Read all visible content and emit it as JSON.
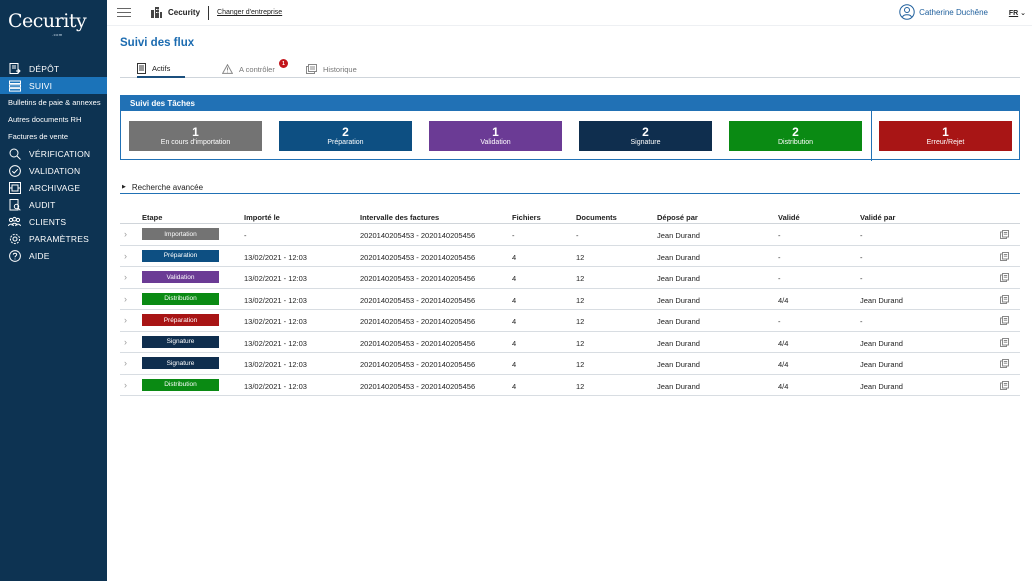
{
  "app": {
    "logo": "Cecurity",
    "logo_sub": ".com"
  },
  "sidebar": {
    "items": [
      {
        "key": "depot",
        "label": "DÉPÔT",
        "icon": "deposit-icon"
      },
      {
        "key": "suivi",
        "label": "SUIVI",
        "icon": "list-icon",
        "active": true
      },
      {
        "key": "sub1",
        "label": "Bulletins de paie & annexes",
        "sub": true
      },
      {
        "key": "sub2",
        "label": "Autres documents RH",
        "sub": true
      },
      {
        "key": "sub3",
        "label": "Factures de vente",
        "sub": true
      },
      {
        "key": "verification",
        "label": "VÉRIFICATION",
        "icon": "search-icon"
      },
      {
        "key": "validation",
        "label": "VALIDATION",
        "icon": "check-circle-icon"
      },
      {
        "key": "archivage",
        "label": "ARCHIVAGE",
        "icon": "archive-icon"
      },
      {
        "key": "audit",
        "label": "AUDIT",
        "icon": "audit-icon"
      },
      {
        "key": "clients",
        "label": "CLIENTS",
        "icon": "users-icon"
      },
      {
        "key": "parametres",
        "label": "PARAMÈTRES",
        "icon": "gear-icon"
      },
      {
        "key": "aide",
        "label": "AIDE",
        "icon": "help-icon"
      }
    ]
  },
  "header": {
    "company_name": "Cecurity",
    "change_company": "Changer d'entreprise",
    "user_name": "Catherine Duchêne",
    "lang": "FR"
  },
  "page": {
    "title": "Suivi des flux"
  },
  "tabs": [
    {
      "label": "Actifs",
      "active": true
    },
    {
      "label": "A contrôler",
      "badge": "1"
    },
    {
      "label": "Historique"
    }
  ],
  "tasks": {
    "title": "Suivi des Tâches",
    "cards": [
      {
        "count": "1",
        "label": "En cours d'importation",
        "color": "#737373"
      },
      {
        "count": "2",
        "label": "Préparation",
        "color": "#0d4f82"
      },
      {
        "count": "1",
        "label": "Validation",
        "color": "#6b3b95"
      },
      {
        "count": "2",
        "label": "Signature",
        "color": "#0f2e4e"
      },
      {
        "count": "2",
        "label": "Distribution",
        "color": "#0a8a13"
      },
      {
        "count": "1",
        "label": "Erreur/Rejet",
        "color": "#a81515"
      }
    ]
  },
  "advanced_search": "Recherche avancée",
  "table": {
    "headers": [
      "Etape",
      "Importé le",
      "Intervalle des factures",
      "Fichiers",
      "Documents",
      "Déposé par",
      "Validé",
      "Validé par"
    ],
    "rows": [
      {
        "stage": "Importation",
        "color": "#737373",
        "imported": "-",
        "range": "2020140205453 - 2020140205456",
        "files": "-",
        "docs": "-",
        "by": "Jean Durand",
        "validated": "-",
        "validated_by": "-"
      },
      {
        "stage": "Préparation",
        "color": "#0d4f82",
        "imported": "13/02/2021 - 12:03",
        "range": "2020140205453 - 2020140205456",
        "files": "4",
        "docs": "12",
        "by": "Jean Durand",
        "validated": "-",
        "validated_by": "-"
      },
      {
        "stage": "Validation",
        "color": "#6b3b95",
        "imported": "13/02/2021 - 12:03",
        "range": "2020140205453 - 2020140205456",
        "files": "4",
        "docs": "12",
        "by": "Jean Durand",
        "validated": "-",
        "validated_by": "-"
      },
      {
        "stage": "Distribution",
        "color": "#0a8a13",
        "imported": "13/02/2021 - 12:03",
        "range": "2020140205453 - 2020140205456",
        "files": "4",
        "docs": "12",
        "by": "Jean Durand",
        "validated": "4/4",
        "validated_by": "Jean Durand"
      },
      {
        "stage": "Préparation",
        "color": "#a81515",
        "imported": "13/02/2021 - 12:03",
        "range": "2020140205453 - 2020140205456",
        "files": "4",
        "docs": "12",
        "by": "Jean Durand",
        "validated": "-",
        "validated_by": "-"
      },
      {
        "stage": "Signature",
        "color": "#0f2e4e",
        "imported": "13/02/2021 - 12:03",
        "range": "2020140205453 - 2020140205456",
        "files": "4",
        "docs": "12",
        "by": "Jean Durand",
        "validated": "4/4",
        "validated_by": "Jean Durand"
      },
      {
        "stage": "Signature",
        "color": "#0f2e4e",
        "imported": "13/02/2021 - 12:03",
        "range": "2020140205453 - 2020140205456",
        "files": "4",
        "docs": "12",
        "by": "Jean Durand",
        "validated": "4/4",
        "validated_by": "Jean Durand"
      },
      {
        "stage": "Distribution",
        "color": "#0a8a13",
        "imported": "13/02/2021 - 12:03",
        "range": "2020140205453 - 2020140205456",
        "files": "4",
        "docs": "12",
        "by": "Jean Durand",
        "validated": "4/4",
        "validated_by": "Jean Durand"
      }
    ]
  }
}
